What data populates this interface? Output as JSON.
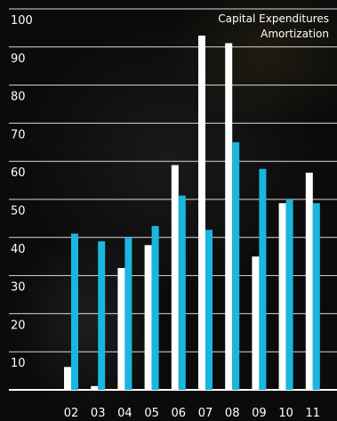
{
  "chart_data": {
    "type": "bar",
    "title": "",
    "xlabel": "",
    "ylabel": "",
    "ylim": [
      0,
      100
    ],
    "yticks": [
      10,
      20,
      30,
      40,
      50,
      60,
      70,
      80,
      90,
      100
    ],
    "grid": true,
    "legend_position": "top-right",
    "categories": [
      "02",
      "03",
      "04",
      "05",
      "06",
      "07",
      "08",
      "09",
      "10",
      "11"
    ],
    "series": [
      {
        "name": "Capital Expenditures",
        "color": "#ffffff",
        "values": [
          6,
          1,
          32,
          38,
          59,
          93,
          91,
          35,
          49,
          57
        ]
      },
      {
        "name": "Amortization",
        "color": "#19b6df",
        "values": [
          41,
          39,
          40,
          43,
          51,
          42,
          65,
          58,
          50,
          49
        ]
      }
    ]
  }
}
